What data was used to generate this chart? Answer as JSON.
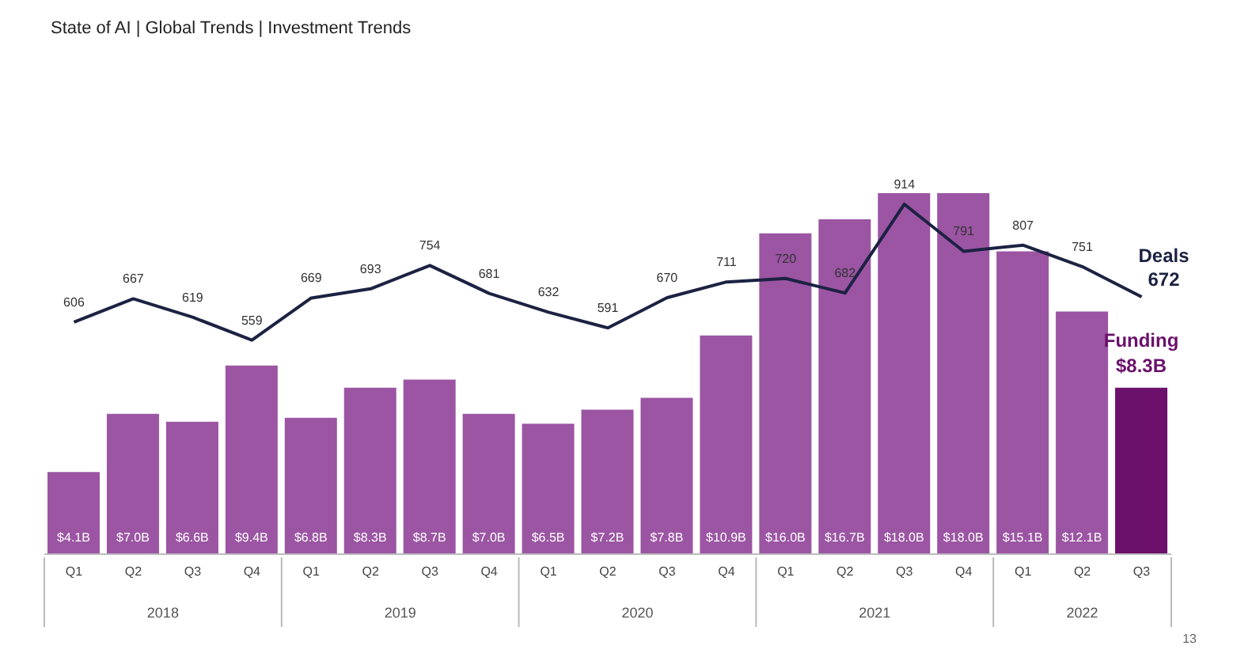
{
  "chart_data": {
    "type": "bar",
    "title": "State of AI | Global Trends | Investment Trends",
    "categories": [
      "Q1",
      "Q2",
      "Q3",
      "Q4",
      "Q1",
      "Q2",
      "Q3",
      "Q4",
      "Q1",
      "Q2",
      "Q3",
      "Q4",
      "Q1",
      "Q2",
      "Q3",
      "Q4",
      "Q1",
      "Q2",
      "Q3"
    ],
    "series": [
      {
        "name": "Funding",
        "colors": [
          "#9b55a3",
          "#9b55a3",
          "#9b55a3",
          "#9b55a3",
          "#9b55a3",
          "#9b55a3",
          "#9b55a3",
          "#9b55a3",
          "#9b55a3",
          "#9b55a3",
          "#9b55a3",
          "#9b55a3",
          "#9b55a3",
          "#9b55a3",
          "#9b55a3",
          "#9b55a3",
          "#9b55a3",
          "#9b55a3",
          "#6b116b"
        ],
        "values": [
          4.1,
          7.0,
          6.6,
          9.4,
          6.8,
          8.3,
          8.7,
          7.0,
          6.5,
          7.2,
          7.8,
          10.9,
          16.0,
          16.7,
          18.0,
          18.0,
          15.1,
          12.1,
          8.3
        ],
        "value_labels": [
          "$4.1B",
          "$7.0B",
          "$6.6B",
          "$9.4B",
          "$6.8B",
          "$8.3B",
          "$8.7B",
          "$7.0B",
          "$6.5B",
          "$7.2B",
          "$7.8B",
          "$10.9B",
          "$16.0B",
          "$16.7B",
          "$18.0B",
          "$18.0B",
          "$15.1B",
          "$12.1B",
          "$8.3B"
        ]
      },
      {
        "name": "Deals",
        "type": "line",
        "axis": "y2",
        "color": "#1c2242",
        "values": [
          606,
          667,
          619,
          559,
          669,
          693,
          754,
          681,
          632,
          591,
          670,
          711,
          720,
          682,
          914,
          791,
          807,
          751,
          672
        ]
      }
    ],
    "data_labels": true,
    "marker": "none",
    "annotations": [
      "2018",
      "2019",
      "2020",
      "2021",
      "2022",
      "13"
    ]
  }
}
